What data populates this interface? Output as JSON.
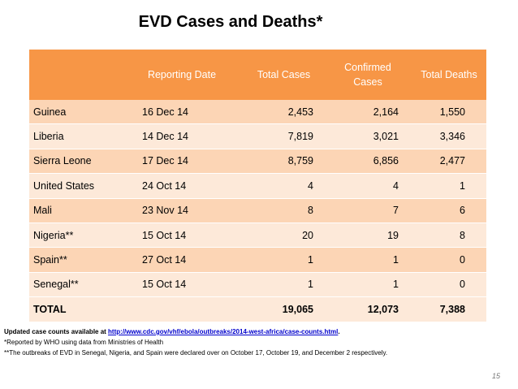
{
  "title": "EVD Cases and Deaths*",
  "table": {
    "headers": [
      "",
      "Reporting Date",
      "Total Cases",
      "Confirmed Cases",
      "Total Deaths"
    ],
    "rows": [
      {
        "country": "Guinea",
        "date": "16 Dec 14",
        "total_cases": "2,453",
        "confirmed": "2,164",
        "deaths": "1,550"
      },
      {
        "country": "Liberia",
        "date": "14 Dec 14",
        "total_cases": "7,819",
        "confirmed": "3,021",
        "deaths": "3,346"
      },
      {
        "country": "Sierra Leone",
        "date": "17 Dec 14",
        "total_cases": "8,759",
        "confirmed": "6,856",
        "deaths": "2,477"
      },
      {
        "country": "United States",
        "date": "24 Oct 14",
        "total_cases": "4",
        "confirmed": "4",
        "deaths": "1"
      },
      {
        "country": "Mali",
        "date": "23 Nov 14",
        "total_cases": "8",
        "confirmed": "7",
        "deaths": "6"
      },
      {
        "country": "Nigeria**",
        "date": "15 Oct 14",
        "total_cases": "20",
        "confirmed": "19",
        "deaths": "8"
      },
      {
        "country": "Spain**",
        "date": "27 Oct 14",
        "total_cases": "1",
        "confirmed": "1",
        "deaths": "0"
      },
      {
        "country": "Senegal**",
        "date": "15 Oct 14",
        "total_cases": "1",
        "confirmed": "1",
        "deaths": "0"
      }
    ],
    "total": {
      "label": "TOTAL",
      "date": "",
      "total_cases": "19,065",
      "confirmed": "12,073",
      "deaths": "7,388"
    }
  },
  "notes": {
    "line1_prefix": "Updated case counts available at ",
    "line1_link": "http://www.cdc.gov/vhf/ebola/outbreaks/2014-west-africa/case-counts.html",
    "line1_suffix": ".",
    "line2": "*Reported by WHO using data from Ministries of Health",
    "line3": "**The outbreaks of EVD in Senegal, Nigeria, and Spain were declared over on October 17, October 19, and December 2 respectively."
  },
  "page_number": "15",
  "colors": {
    "header": "#f79646",
    "row_dark": "#fcd5b5",
    "row_light": "#fde9d9"
  }
}
